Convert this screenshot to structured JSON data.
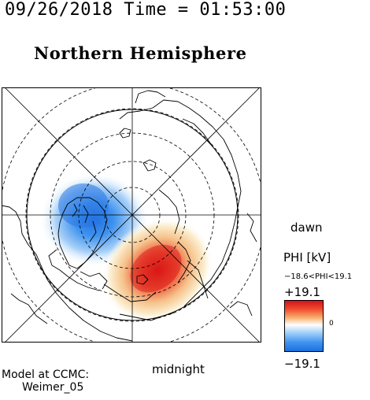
{
  "header": {
    "timestamp": "09/26/2018 Time = 01:53:00",
    "hemisphere_title": "Northern Hemisphere"
  },
  "map": {
    "dawn_label": "dawn",
    "midnight_label": "midnight"
  },
  "colorbar": {
    "title": "PHI [kV]",
    "range_text": "−18.6<PHI<19.1",
    "max_label": "+19.1",
    "min_label": "−19.1",
    "zero_label": "0",
    "min_value": -19.1,
    "max_value": 19.1,
    "colors": {
      "positive": "#e01a1a",
      "neutral": "#ffffff",
      "negative": "#1a7ee0"
    }
  },
  "footer": {
    "model_line": "Model at CCMC:",
    "model_name": "Weimer_05"
  },
  "potential_cells": [
    {
      "polarity": "negative",
      "peak_kv": -18.6,
      "side": "dusk / pre-midnight"
    },
    {
      "polarity": "positive",
      "peak_kv": 19.1,
      "side": "dawn / post-midnight"
    }
  ]
}
